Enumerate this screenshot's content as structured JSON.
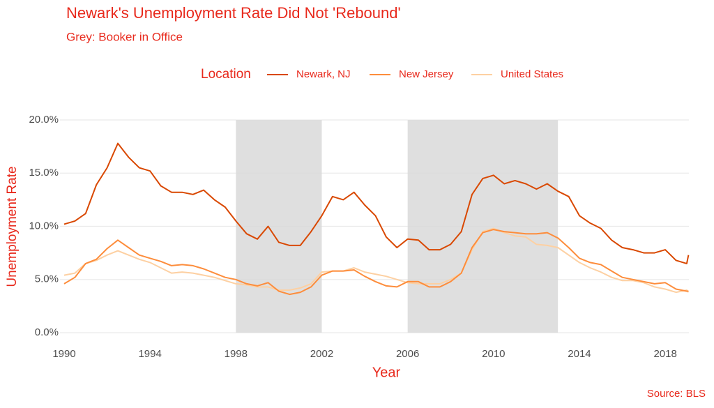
{
  "chart_data": {
    "type": "line",
    "title": "Newark's Unemployment Rate Did Not 'Rebound'",
    "subtitle": "Grey: Booker in Office",
    "legend_title": "Location",
    "x_label": "Year",
    "y_label": "Unemployment Rate",
    "caption": "Source: BLS",
    "shaded_periods": [
      [
        1998,
        2002
      ],
      [
        2006,
        2013
      ]
    ],
    "shade_color": "#d9d9d9",
    "x": [
      1990,
      1990.5,
      1991,
      1991.5,
      1992,
      1992.5,
      1993,
      1993.5,
      1994,
      1994.5,
      1995,
      1995.5,
      1996,
      1996.5,
      1997,
      1997.5,
      1998,
      1998.5,
      1999,
      1999.5,
      2000,
      2000.5,
      2001,
      2001.5,
      2002,
      2002.5,
      2003,
      2003.5,
      2004,
      2004.5,
      2005,
      2005.5,
      2006,
      2006.5,
      2007,
      2007.5,
      2008,
      2008.5,
      2009,
      2009.5,
      2010,
      2010.5,
      2011,
      2011.5,
      2012,
      2012.5,
      2013,
      2013.5,
      2014,
      2014.5,
      2015,
      2015.5,
      2016,
      2016.5,
      2017,
      2017.5,
      2018,
      2018.5,
      2019,
      2019.08
    ],
    "series": [
      {
        "name": "Newark, NJ",
        "color": "#d94801",
        "values": [
          10.2,
          10.5,
          11.2,
          13.9,
          15.5,
          17.8,
          16.5,
          15.5,
          15.2,
          13.8,
          13.2,
          13.2,
          13.0,
          13.4,
          12.5,
          11.8,
          10.5,
          9.3,
          8.8,
          10.0,
          8.5,
          8.2,
          8.2,
          9.5,
          11.0,
          12.8,
          12.5,
          13.2,
          12.0,
          11.0,
          9.0,
          8.0,
          8.8,
          8.7,
          7.8,
          7.8,
          8.3,
          9.5,
          13.0,
          14.5,
          14.8,
          14.0,
          14.3,
          14.0,
          13.5,
          14.0,
          13.3,
          12.8,
          11.0,
          10.3,
          9.8,
          8.7,
          8.0,
          7.8,
          7.5,
          7.5,
          7.8,
          6.8,
          6.5,
          7.3
        ]
      },
      {
        "name": "New Jersey",
        "color": "#fd8d3c",
        "values": [
          4.6,
          5.2,
          6.5,
          6.9,
          7.9,
          8.7,
          8.0,
          7.3,
          7.0,
          6.7,
          6.3,
          6.4,
          6.3,
          6.0,
          5.6,
          5.2,
          5.0,
          4.6,
          4.4,
          4.7,
          3.9,
          3.6,
          3.8,
          4.3,
          5.4,
          5.8,
          5.8,
          5.9,
          5.3,
          4.8,
          4.4,
          4.3,
          4.8,
          4.8,
          4.3,
          4.3,
          4.8,
          5.6,
          8.0,
          9.4,
          9.7,
          9.5,
          9.4,
          9.3,
          9.3,
          9.4,
          8.9,
          8.0,
          7.0,
          6.6,
          6.4,
          5.8,
          5.2,
          5.0,
          4.8,
          4.6,
          4.7,
          4.1,
          3.9,
          3.9
        ]
      },
      {
        "name": "United States",
        "color": "#fdd0a2",
        "values": [
          5.4,
          5.6,
          6.5,
          6.8,
          7.3,
          7.7,
          7.3,
          6.9,
          6.6,
          6.1,
          5.6,
          5.7,
          5.6,
          5.4,
          5.2,
          4.9,
          4.6,
          4.5,
          4.3,
          4.3,
          4.0,
          4.0,
          4.2,
          4.6,
          5.7,
          5.8,
          5.8,
          6.1,
          5.7,
          5.5,
          5.3,
          5.0,
          4.7,
          4.6,
          4.6,
          4.6,
          5.0,
          5.6,
          7.8,
          9.5,
          9.8,
          9.4,
          9.1,
          9.0,
          8.3,
          8.2,
          8.0,
          7.3,
          6.6,
          6.1,
          5.7,
          5.2,
          4.9,
          4.9,
          4.7,
          4.3,
          4.1,
          3.8,
          4.0,
          3.8
        ]
      }
    ],
    "xlim": [
      1990,
      2019.1
    ],
    "xticks": [
      1990,
      1994,
      1998,
      2002,
      2006,
      2010,
      2014,
      2018
    ],
    "ylim": [
      0,
      20
    ],
    "yticks": [
      {
        "value": 0,
        "label": "0.0%"
      },
      {
        "value": 5,
        "label": "5.0%"
      },
      {
        "value": 10,
        "label": "10.0%"
      },
      {
        "value": 15,
        "label": "15.0%"
      },
      {
        "value": 20,
        "label": "20.0%"
      }
    ],
    "grid": true,
    "legend_position": "top"
  }
}
